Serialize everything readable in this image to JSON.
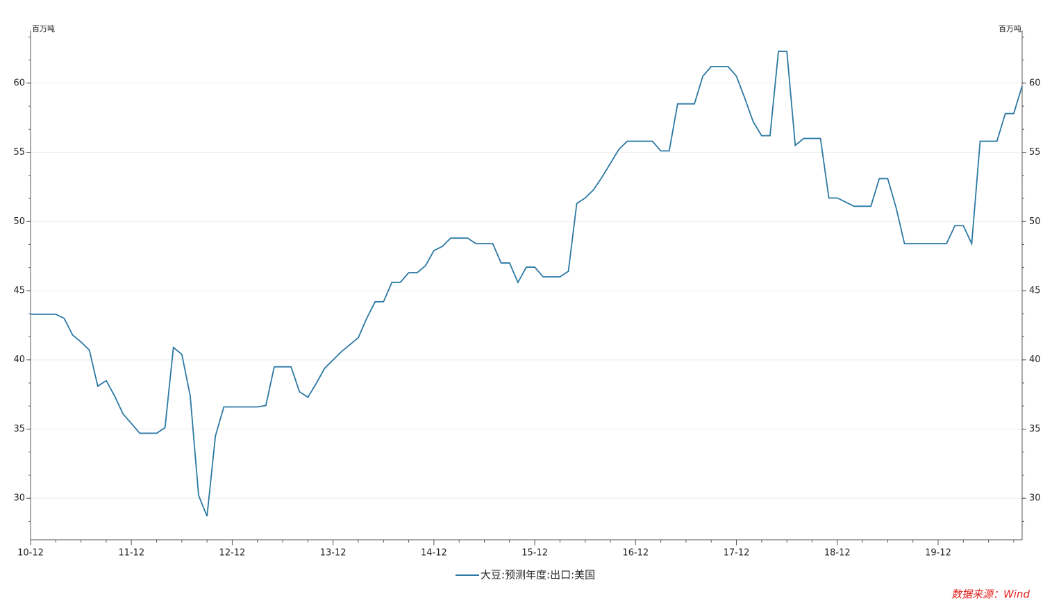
{
  "chart_data": {
    "type": "line",
    "ylabel": "百万吨",
    "y2label": "百万吨",
    "source": "数据来源：Wind",
    "categories": [
      "10-12",
      null,
      null,
      null,
      null,
      null,
      null,
      null,
      null,
      null,
      null,
      null,
      "11-12",
      null,
      null,
      null,
      null,
      null,
      null,
      null,
      null,
      null,
      null,
      null,
      "12-12",
      null,
      null,
      null,
      null,
      null,
      null,
      null,
      null,
      null,
      null,
      null,
      "13-12",
      null,
      null,
      null,
      null,
      null,
      null,
      null,
      null,
      null,
      null,
      null,
      "14-12",
      null,
      null,
      null,
      null,
      null,
      null,
      null,
      null,
      null,
      null,
      null,
      "15-12",
      null,
      null,
      null,
      null,
      null,
      null,
      null,
      null,
      null,
      null,
      null,
      "16-12",
      null,
      null,
      null,
      null,
      null,
      null,
      null,
      null,
      null,
      null,
      null,
      "17-12",
      null,
      null,
      null,
      null,
      null,
      null,
      null,
      null,
      null,
      null,
      null,
      "18-12",
      null,
      null,
      null,
      null,
      null,
      null,
      null,
      null,
      null,
      null,
      null,
      "19-12",
      null,
      null,
      null,
      null,
      null,
      null,
      null,
      null,
      null,
      null
    ],
    "series": [
      {
        "name": "大豆:预测年度:出口:美国",
        "color": "#2b78a3",
        "values": [
          43.3,
          43.3,
          43.3,
          43.3,
          43.0,
          41.8,
          41.3,
          40.7,
          38.1,
          38.5,
          37.4,
          36.1,
          35.4,
          34.7,
          34.7,
          34.7,
          35.1,
          40.9,
          40.4,
          37.4,
          30.2,
          28.7,
          34.5,
          36.6,
          36.6,
          36.6,
          36.6,
          36.6,
          36.7,
          39.5,
          39.5,
          39.5,
          37.7,
          37.3,
          38.3,
          39.4,
          40.0,
          40.6,
          41.1,
          41.6,
          43.0,
          44.2,
          44.2,
          45.6,
          45.6,
          46.3,
          46.3,
          46.8,
          47.9,
          48.2,
          48.8,
          48.8,
          48.8,
          48.4,
          48.4,
          48.4,
          47.0,
          47.0,
          45.6,
          46.7,
          46.7,
          46.0,
          46.0,
          46.0,
          46.4,
          51.3,
          51.7,
          52.3,
          53.2,
          54.2,
          55.2,
          55.8,
          55.8,
          55.8,
          55.8,
          55.1,
          55.1,
          58.5,
          58.5,
          58.5,
          60.5,
          61.2,
          61.2,
          61.2,
          60.5,
          58.9,
          57.2,
          56.2,
          56.2,
          62.3,
          62.3,
          55.5,
          56.0,
          56.0,
          56.0,
          51.7,
          51.7,
          51.4,
          51.1,
          51.1,
          51.1,
          53.1,
          53.1,
          51.0,
          48.4,
          48.4,
          48.4,
          48.4,
          48.4,
          48.4,
          49.7,
          49.7,
          48.4,
          55.8,
          55.8,
          55.8,
          57.8,
          57.8,
          59.8
        ]
      }
    ],
    "ylim": [
      27,
      63.8
    ],
    "yticks": [
      30,
      35,
      40,
      45,
      50,
      55,
      60
    ],
    "grid": true
  }
}
